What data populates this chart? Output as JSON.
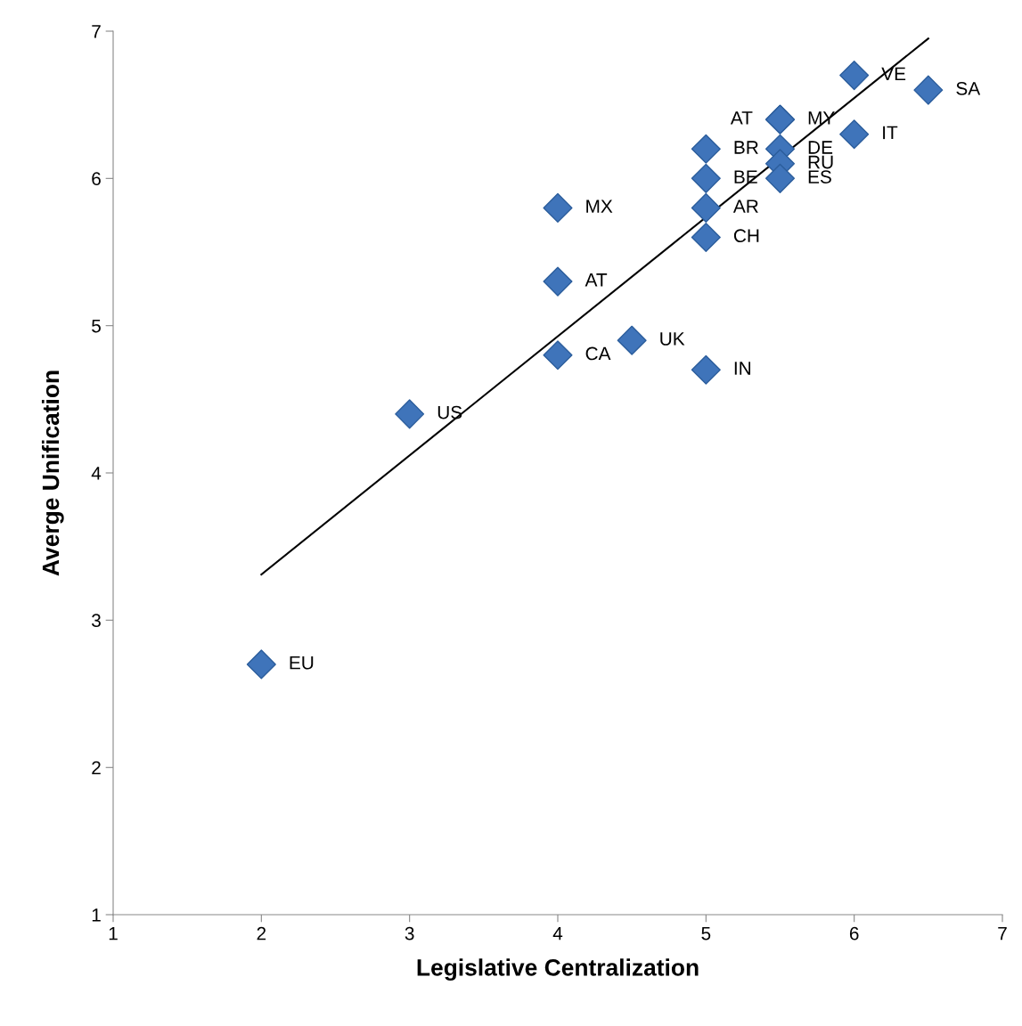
{
  "chart_data": {
    "type": "scatter",
    "xlabel": "Legislative Centralization",
    "ylabel": "Averge Unification",
    "xlim": [
      1,
      7
    ],
    "ylim": [
      1,
      7
    ],
    "xticks": [
      1,
      2,
      3,
      4,
      5,
      6,
      7
    ],
    "yticks": [
      1,
      2,
      3,
      4,
      5,
      6,
      7
    ],
    "grid": false,
    "marker": "diamond",
    "series": [
      {
        "color": "#3f74ba",
        "x": [
          2,
          3,
          4,
          4,
          4,
          4.5,
          5,
          5,
          5,
          5,
          5,
          5.5,
          5.5,
          5.5,
          5.5,
          5.5,
          6,
          6,
          6.5
        ],
        "values": [
          2.7,
          4.4,
          4.8,
          5.3,
          5.8,
          4.9,
          4.7,
          5.6,
          5.8,
          6.0,
          6.2,
          6.4,
          6.4,
          6.2,
          6.1,
          6.0,
          6.7,
          6.3,
          6.6
        ],
        "value_labels": [
          "EU",
          "US",
          "CA",
          "AT",
          "MX",
          "UK",
          "IN",
          "CH",
          "AR",
          "BE",
          "BR",
          "AT",
          "MY",
          "DE",
          "RU",
          "ES",
          "VE",
          "IT",
          "SA"
        ]
      },
      {
        "type": "line",
        "color": "#000000",
        "x": [
          2,
          6.5
        ],
        "values": [
          3.31,
          6.95
        ],
        "marker": "none"
      }
    ]
  }
}
